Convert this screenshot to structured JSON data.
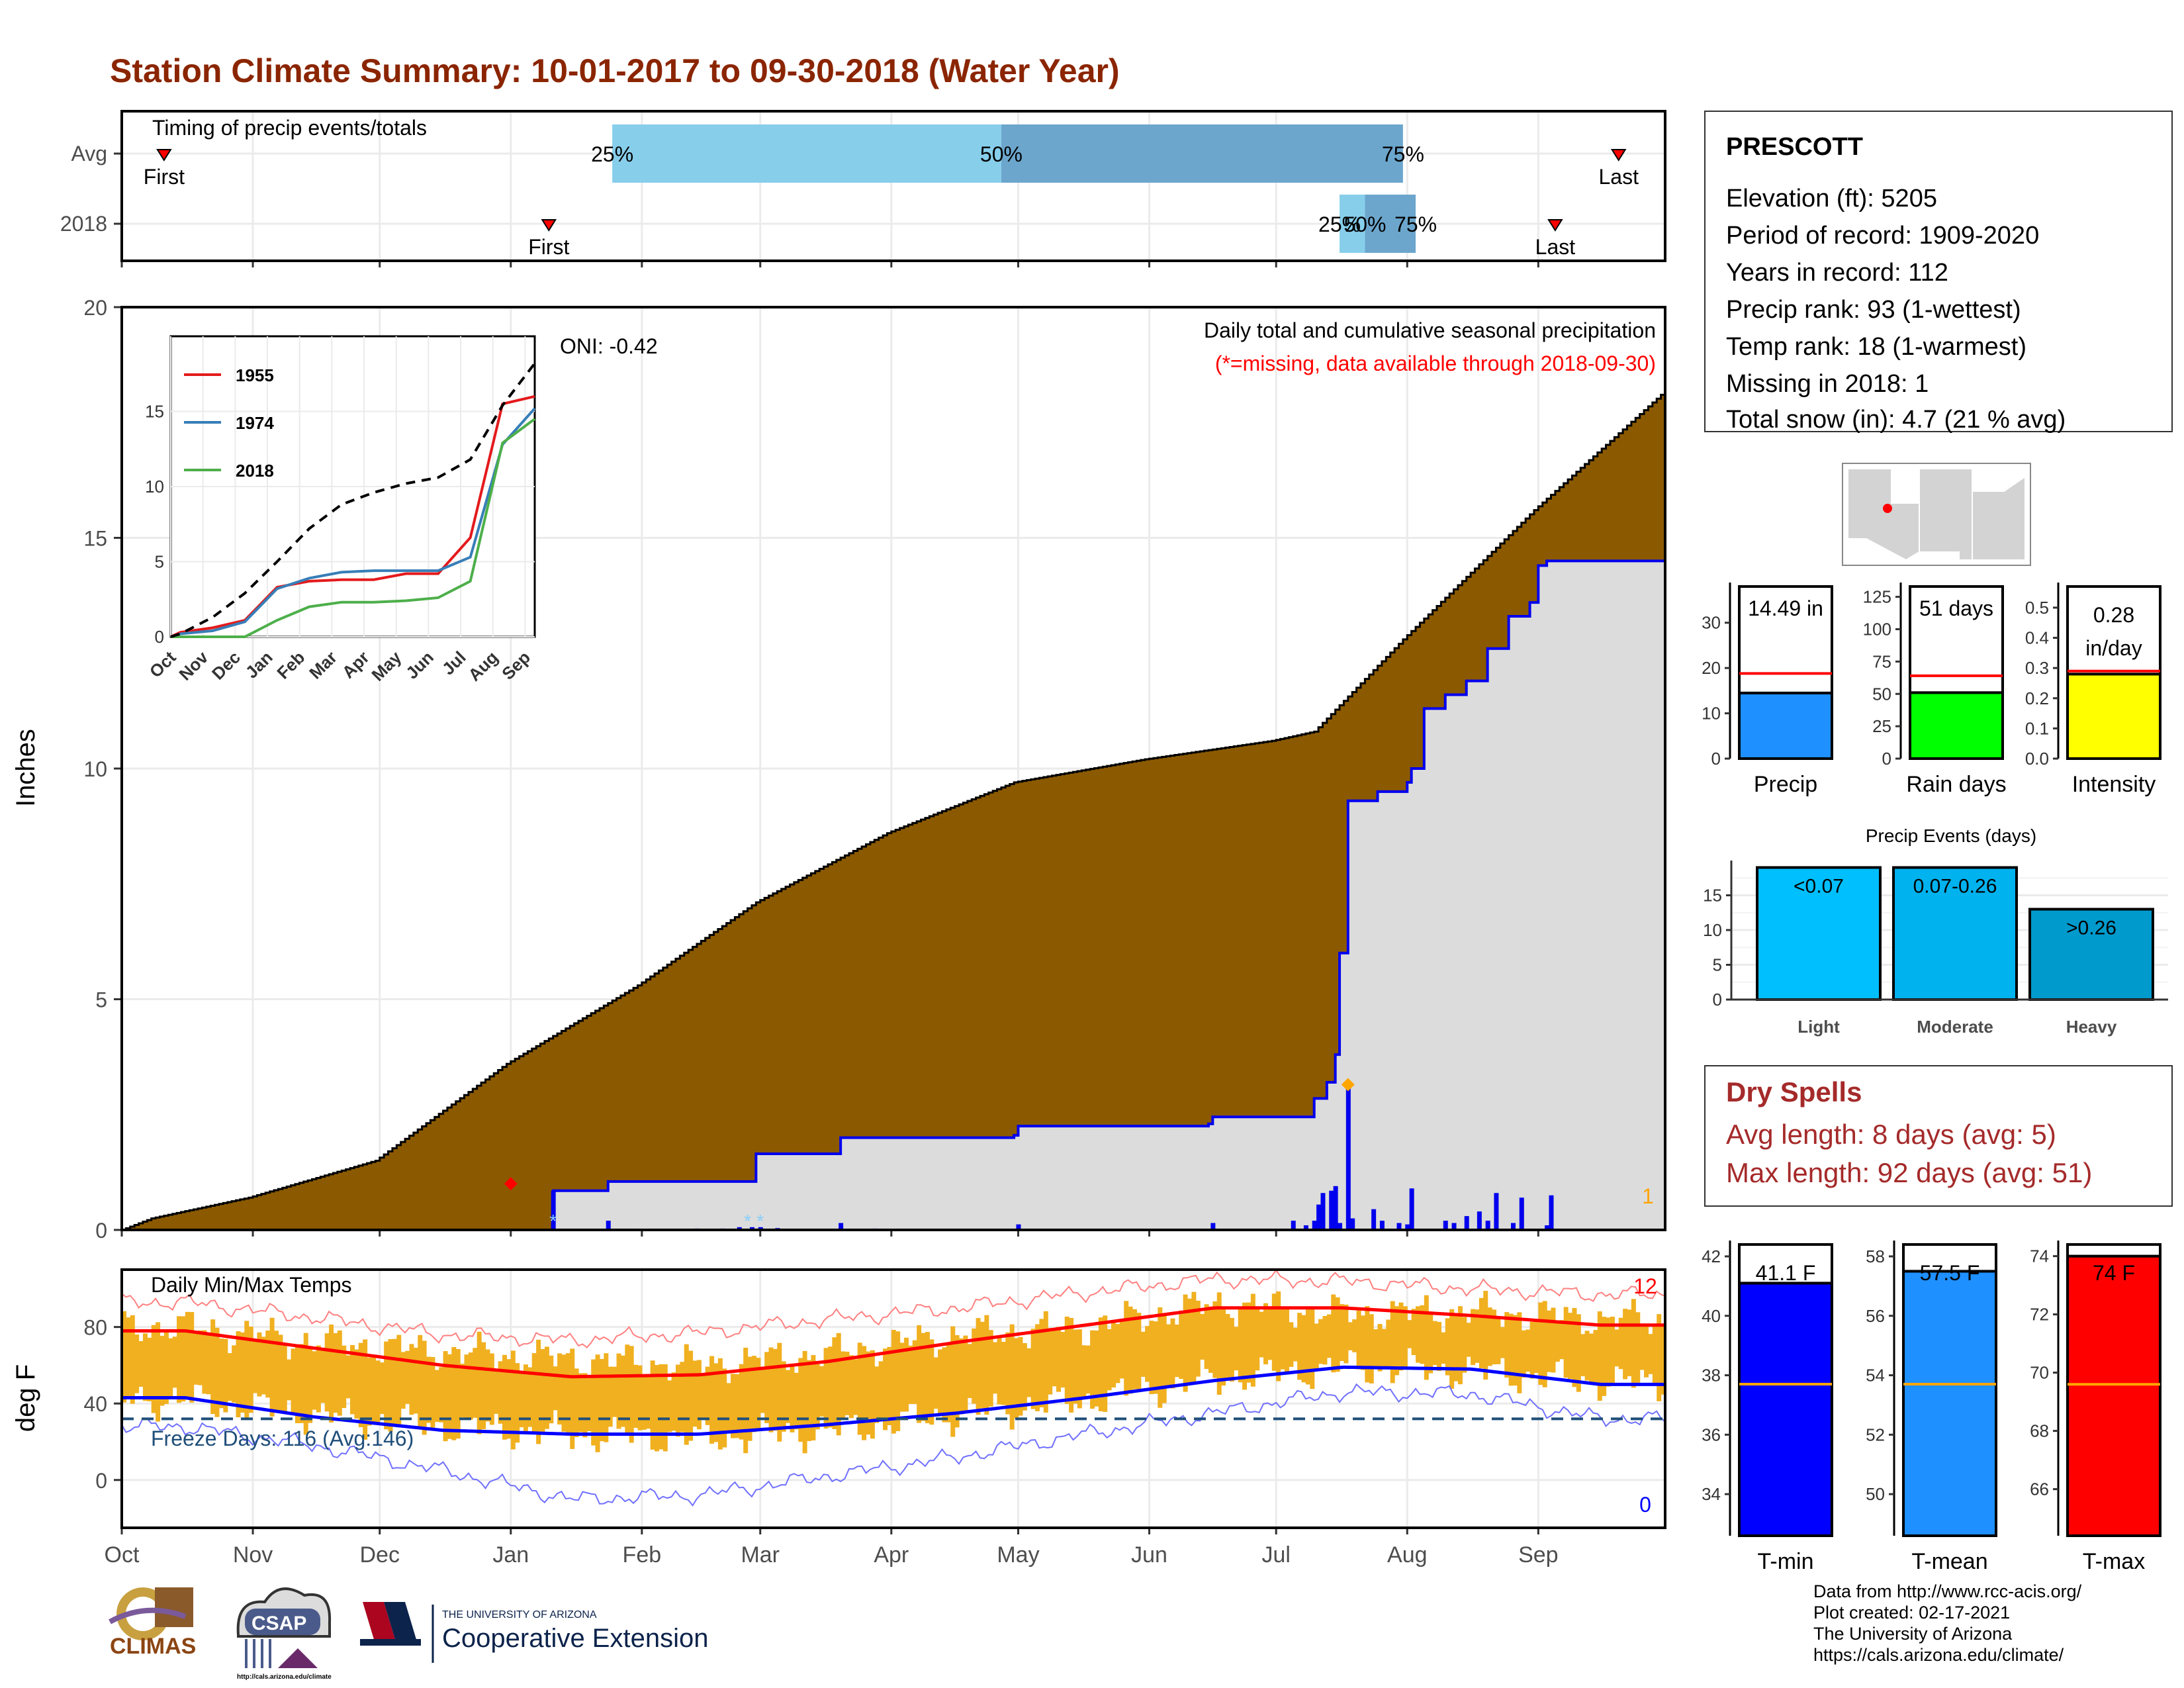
{
  "title": "Station Climate Summary: 10-01-2017 to 09-30-2018 (Water Year)",
  "colors": {
    "title": "#8B2500",
    "brown": "#8B5A00",
    "rain_blue": "#0000EE",
    "temp_bar": "#F0B020",
    "p25": "#87CEEB",
    "p50": "#6CA6CD",
    "precip_bar": "#1E90FF",
    "rain_days": "#00FF00",
    "intensity": "#FFFF00",
    "light": "#00BFFF",
    "moderate": "#00B2EE",
    "heavy": "#009ACD",
    "tmin": "#0000FF",
    "tmean": "#1E90FF",
    "tmax": "#FF0000",
    "dry_spells": "#A52A2A"
  },
  "months": [
    "Oct",
    "Nov",
    "Dec",
    "Jan",
    "Feb",
    "Mar",
    "Apr",
    "May",
    "Jun",
    "Jul",
    "Aug",
    "Sep"
  ],
  "timing": {
    "label": "Timing of precip events/totals",
    "rows": [
      "Avg",
      "2018"
    ],
    "first_label": "First",
    "last_label": "Last",
    "pct_labels": [
      "25%",
      "50%",
      "75%"
    ],
    "avg": {
      "first": "2017-10-11",
      "p25": "2018-01-25",
      "p50": "2018-04-27",
      "p75": "2018-07-31",
      "last": "2018-09-20"
    },
    "y2018": {
      "first": "2018-01-10",
      "p25": "2018-07-16",
      "p50": "2018-07-22",
      "p75": "2018-08-03",
      "last": "2018-09-05"
    }
  },
  "station": {
    "name": "PRESCOTT",
    "lines": [
      "Elevation (ft): 5205",
      "Period of record: 1909-2020",
      "Years in record: 112",
      "Precip rank: 93 (1-wettest)",
      "Temp rank: 18 (1-warmest)",
      "Missing in 2018: 1",
      "Total snow (in): 4.7 (21 % avg)"
    ]
  },
  "dry_spells": {
    "title": "Dry Spells",
    "avg_line": "Avg length: 8 days (avg: 5)",
    "max_line": "Max length: 92 days (avg: 51)"
  },
  "credits": [
    "Data from http://www.rcc-acis.org/",
    "Plot created: 02-17-2021",
    "The University of Arizona",
    "https://cals.arizona.edu/climate/"
  ],
  "logos": {
    "climas": "CLIMAS",
    "csap": "CSAP",
    "csap_url": "http://cals.arizona.edu/climate",
    "ua_small": "THE UNIVERSITY OF ARIZONA",
    "ua_big": "Cooperative Extension"
  },
  "chart_data": [
    {
      "type": "area",
      "name": "precip-main",
      "ylabel": "Inches",
      "ylim": [
        0,
        20
      ],
      "yticks": [
        0,
        5,
        10,
        15,
        20
      ],
      "annotation_title": "Daily total and cumulative seasonal precipitation",
      "annotation_missing": "(*=missing, data available through 2018-09-30)",
      "oni": "ONI: -0.42",
      "missing_count": "1",
      "avg_cumulative": [
        [
          "2017-10-01",
          0
        ],
        [
          "2017-10-08",
          0.25
        ],
        [
          "2017-10-31",
          0.7
        ],
        [
          "2017-11-30",
          1.5
        ],
        [
          "2017-12-31",
          3.6
        ],
        [
          "2018-01-31",
          5.3
        ],
        [
          "2018-02-28",
          7.1
        ],
        [
          "2018-03-31",
          8.6
        ],
        [
          "2018-04-30",
          9.7
        ],
        [
          "2018-05-31",
          10.2
        ],
        [
          "2018-06-30",
          10.6
        ],
        [
          "2018-07-10",
          10.8
        ],
        [
          "2018-07-31",
          12.8
        ],
        [
          "2018-08-31",
          15.6
        ],
        [
          "2018-09-30",
          18.1
        ]
      ],
      "cum_2018": [
        [
          "2017-10-01",
          0
        ],
        [
          "2018-01-10",
          0
        ],
        [
          "2018-01-11",
          0.85
        ],
        [
          "2018-01-23",
          0.85
        ],
        [
          "2018-01-24",
          1.05
        ],
        [
          "2018-02-27",
          1.05
        ],
        [
          "2018-02-28",
          1.65
        ],
        [
          "2018-03-19",
          1.65
        ],
        [
          "2018-03-20",
          2.0
        ],
        [
          "2018-04-30",
          2.05
        ],
        [
          "2018-05-01",
          2.25
        ],
        [
          "2018-06-15",
          2.3
        ],
        [
          "2018-06-16",
          2.45
        ],
        [
          "2018-07-05",
          2.45
        ],
        [
          "2018-07-10",
          2.85
        ],
        [
          "2018-07-13",
          3.2
        ],
        [
          "2018-07-15",
          3.8
        ],
        [
          "2018-07-16",
          6.0
        ],
        [
          "2018-07-18",
          9.3
        ],
        [
          "2018-07-25",
          9.5
        ],
        [
          "2018-08-01",
          9.7
        ],
        [
          "2018-08-02",
          10.0
        ],
        [
          "2018-08-05",
          11.3
        ],
        [
          "2018-08-10",
          11.6
        ],
        [
          "2018-08-15",
          11.9
        ],
        [
          "2018-08-20",
          12.6
        ],
        [
          "2018-08-25",
          13.3
        ],
        [
          "2018-08-30",
          13.6
        ],
        [
          "2018-09-01",
          14.4
        ],
        [
          "2018-09-03",
          14.5
        ],
        [
          "2018-09-30",
          14.5
        ]
      ],
      "daily": [
        [
          "2018-01-11",
          0.85
        ],
        [
          "2018-01-24",
          0.2
        ],
        [
          "2018-02-14",
          0.03
        ],
        [
          "2018-02-20",
          0.03
        ],
        [
          "2018-02-24",
          0.06
        ],
        [
          "2018-02-27",
          0.06
        ],
        [
          "2018-03-01",
          0.06
        ],
        [
          "2018-03-05",
          0.04
        ],
        [
          "2018-03-20",
          0.15
        ],
        [
          "2018-03-28",
          0.03
        ],
        [
          "2018-05-01",
          0.12
        ],
        [
          "2018-06-16",
          0.15
        ],
        [
          "2018-07-05",
          0.2
        ],
        [
          "2018-07-08",
          0.1
        ],
        [
          "2018-07-10",
          0.2
        ],
        [
          "2018-07-11",
          0.55
        ],
        [
          "2018-07-12",
          0.8
        ],
        [
          "2018-07-14",
          0.85
        ],
        [
          "2018-07-15",
          0.95
        ],
        [
          "2018-07-16",
          0.15
        ],
        [
          "2018-07-18",
          3.1
        ],
        [
          "2018-07-19",
          0.25
        ],
        [
          "2018-07-24",
          0.45
        ],
        [
          "2018-07-26",
          0.2
        ],
        [
          "2018-07-30",
          0.15
        ],
        [
          "2018-08-01",
          0.12
        ],
        [
          "2018-08-02",
          0.9
        ],
        [
          "2018-08-10",
          0.2
        ],
        [
          "2018-08-12",
          0.15
        ],
        [
          "2018-08-15",
          0.3
        ],
        [
          "2018-08-18",
          0.4
        ],
        [
          "2018-08-20",
          0.2
        ],
        [
          "2018-08-22",
          0.8
        ],
        [
          "2018-08-26",
          0.15
        ],
        [
          "2018-08-28",
          0.7
        ],
        [
          "2018-09-03",
          0.1
        ],
        [
          "2018-09-04",
          0.75
        ]
      ],
      "snow_markers": [
        [
          "2018-01-11",
          0.12
        ],
        [
          "2018-02-26",
          0.1
        ],
        [
          "2018-03-01",
          0.1
        ]
      ],
      "red_marker": [
        "2018-01-01",
        1.0
      ],
      "orange_marker": [
        "2018-07-18",
        3.15
      ]
    },
    {
      "type": "line",
      "name": "inset-comparison",
      "categories": [
        "Oct",
        "Nov",
        "Dec",
        "Jan",
        "Feb",
        "Mar",
        "Apr",
        "May",
        "Jun",
        "Jul",
        "Aug",
        "Sep"
      ],
      "ylim": [
        0,
        20
      ],
      "yticks": [
        0,
        5,
        10,
        15
      ],
      "series": [
        {
          "name": "1955",
          "color": "#E41A1C",
          "values": [
            0.3,
            0.6,
            1.1,
            3.3,
            3.7,
            3.8,
            3.8,
            4.2,
            4.2,
            6.6,
            15.5,
            16.0
          ]
        },
        {
          "name": "1974",
          "color": "#377EB8",
          "values": [
            0.2,
            0.4,
            1.0,
            3.2,
            3.9,
            4.3,
            4.4,
            4.4,
            4.4,
            5.3,
            12.8,
            15.2
          ]
        },
        {
          "name": "2018",
          "color": "#4DAF4A",
          "values": [
            0,
            0,
            0,
            1.1,
            2.0,
            2.3,
            2.3,
            2.4,
            2.6,
            3.7,
            12.9,
            14.5
          ]
        },
        {
          "name": "",
          "color": "#000000",
          "dashed": true,
          "values": [
            0.2,
            1.3,
            2.9,
            5.0,
            7.2,
            8.8,
            9.6,
            10.2,
            10.6,
            11.8,
            15.4,
            18.2
          ]
        }
      ]
    },
    {
      "type": "bar",
      "name": "daily-temps",
      "label": "Daily Min/Max Temps",
      "ylabel": "deg F",
      "ylim": [
        -25,
        110
      ],
      "yticks": [
        0,
        40,
        80
      ],
      "freeze_label": "Freeze Days: 116 (Avg:146)",
      "freeze_line": 32,
      "record_high_count": "12",
      "record_low_count": "0",
      "avg_max_monthly": [
        78,
        69,
        60,
        54,
        55,
        62,
        72,
        81,
        90,
        90,
        86,
        81
      ],
      "avg_min_monthly": [
        43,
        33,
        26,
        24,
        24,
        29,
        35,
        43,
        52,
        59,
        58,
        50
      ],
      "record_max_monthly": [
        93,
        85,
        76,
        73,
        77,
        84,
        90,
        98,
        105,
        104,
        100,
        97
      ],
      "record_min_monthly": [
        28,
        18,
        5,
        -10,
        -8,
        2,
        12,
        24,
        35,
        46,
        45,
        32
      ],
      "max_2018_monthly": [
        80,
        72,
        67,
        63,
        60,
        66,
        76,
        80,
        92,
        87,
        88,
        84
      ],
      "min_2018_monthly": [
        42,
        34,
        28,
        24,
        22,
        26,
        34,
        42,
        53,
        59,
        57,
        51
      ]
    },
    {
      "type": "bar",
      "name": "summary-precip",
      "title": "Precip",
      "value_label": "14.49 in",
      "value": 14.49,
      "avg": 18.8,
      "ylim": [
        0,
        38
      ],
      "yticks": [
        0,
        10,
        20,
        30
      ]
    },
    {
      "type": "bar",
      "name": "summary-rain-days",
      "title": "Rain days",
      "value_label": "51 days",
      "value": 51,
      "avg": 64,
      "ylim": [
        0,
        133
      ],
      "yticks": [
        0,
        25,
        50,
        75,
        100,
        125
      ]
    },
    {
      "type": "bar",
      "name": "summary-intensity",
      "title": "Intensity",
      "value_label": [
        "0.28",
        "in/day"
      ],
      "value": 0.28,
      "avg": 0.29,
      "ylim": [
        0,
        0.57
      ],
      "yticks": [
        0.0,
        0.1,
        0.2,
        0.3,
        0.4,
        0.5
      ]
    },
    {
      "type": "bar",
      "name": "precip-events",
      "title": "Precip Events (days)",
      "categories": [
        "Light",
        "Moderate",
        "Heavy"
      ],
      "bar_labels": [
        "<0.07",
        "0.07-0.26",
        ">0.26"
      ],
      "values": [
        19,
        19,
        13
      ],
      "ylim": [
        0,
        20
      ],
      "yticks": [
        0,
        5,
        10,
        15
      ]
    },
    {
      "type": "bar",
      "name": "temp-summary",
      "bars": [
        {
          "title": "T-min",
          "value_label": "41.1 F",
          "value": 41.1,
          "avg": 37.7,
          "ylim": [
            32.6,
            42.4
          ],
          "yticks": [
            34,
            36,
            38,
            40,
            42
          ]
        },
        {
          "title": "T-mean",
          "value_label": "57.5 F",
          "value": 57.5,
          "avg": 53.7,
          "ylim": [
            48.6,
            58.4
          ],
          "yticks": [
            50,
            52,
            54,
            56,
            58
          ]
        },
        {
          "title": "T-max",
          "value_label": "74 F",
          "value": 74.0,
          "avg": 69.6,
          "ylim": [
            64.4,
            74.4
          ],
          "yticks": [
            66,
            68,
            70,
            72,
            74
          ]
        }
      ]
    }
  ]
}
